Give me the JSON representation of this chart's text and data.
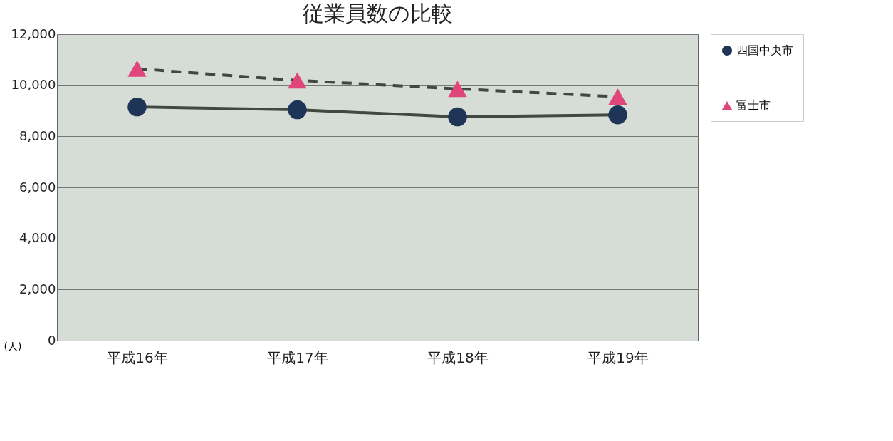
{
  "chart_data": {
    "type": "line",
    "title": "従業員数の比較",
    "ylabel": "(人)",
    "categories": [
      "平成16年",
      "平成17年",
      "平成18年",
      "平成19年"
    ],
    "series": [
      {
        "name": "四国中央市",
        "color": "#1f3558",
        "marker": "circle",
        "line_style": "solid",
        "values": [
          9150,
          9040,
          8760,
          8840
        ]
      },
      {
        "name": "富士市",
        "color": "#e0457b",
        "marker": "triangle",
        "line_style": "dashed",
        "values": [
          10650,
          10190,
          9860,
          9550
        ]
      }
    ],
    "ylim": [
      0,
      12000
    ],
    "yticks": [
      0,
      {
        "value": 2000,
        "label": "2,000"
      },
      {
        "value": 4000,
        "label": "4,000"
      },
      {
        "value": 6000,
        "label": "6,000"
      },
      {
        "value": 8000,
        "label": "8,000"
      },
      {
        "value": 10000,
        "label": "10,000"
      },
      {
        "value": 12000,
        "label": "12,000"
      }
    ],
    "grid": "y",
    "legend": "right"
  }
}
